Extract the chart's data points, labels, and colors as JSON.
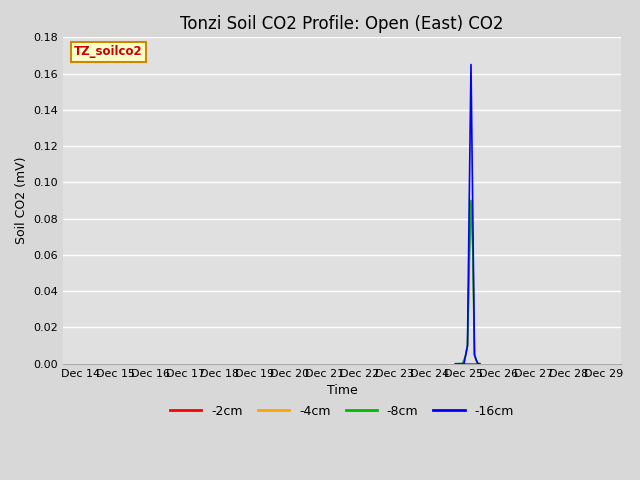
{
  "title": "Tonzi Soil CO2 Profile: Open (East) CO2",
  "xlabel": "Time",
  "ylabel": "Soil CO2 (mV)",
  "ylim": [
    0.0,
    0.18
  ],
  "yticks": [
    0.0,
    0.02,
    0.04,
    0.06,
    0.08,
    0.1,
    0.12,
    0.14,
    0.16,
    0.18
  ],
  "fig_bg_color": "#d8d8d8",
  "plot_bg_color": "#e0e0e0",
  "legend_label": "TZ_soilco2",
  "series": [
    {
      "label": "-2cm",
      "color": "#ff0000",
      "x_days": [
        10.85,
        10.9,
        10.95,
        11.0,
        11.05,
        11.1,
        11.15,
        11.2,
        11.25,
        11.3,
        11.35,
        11.4,
        11.45
      ],
      "y_values": [
        0.0,
        0.0,
        0.0,
        0.0,
        0.0,
        0.0,
        0.0,
        0.0,
        0.0,
        0.0,
        0.0,
        0.0,
        0.0
      ]
    },
    {
      "label": "-4cm",
      "color": "#ffa500",
      "x_days": [
        10.85,
        10.9,
        10.95,
        11.0,
        11.05,
        11.1,
        11.15,
        11.2,
        11.25,
        11.3,
        11.35,
        11.4,
        11.45
      ],
      "y_values": [
        0.0,
        0.0,
        0.0,
        0.002,
        0.005,
        0.01,
        0.055,
        0.09,
        0.065,
        0.005,
        0.002,
        0.0,
        0.0
      ]
    },
    {
      "label": "-8cm",
      "color": "#00bb00",
      "x_days": [
        10.85,
        10.9,
        10.95,
        11.0,
        11.05,
        11.1,
        11.15,
        11.2,
        11.25,
        11.3,
        11.35,
        11.4,
        11.45
      ],
      "y_values": [
        0.0,
        0.0,
        0.0,
        0.002,
        0.005,
        0.01,
        0.055,
        0.09,
        0.065,
        0.005,
        0.002,
        0.0,
        0.0
      ]
    },
    {
      "label": "-16cm",
      "color": "#0000ff",
      "x_days": [
        10.75,
        10.8,
        10.85,
        10.9,
        10.95,
        11.0,
        11.05,
        11.1,
        11.15,
        11.2,
        11.25,
        11.3,
        11.35,
        11.4,
        11.45
      ],
      "y_values": [
        0.0,
        0.0,
        0.0,
        0.0,
        0.0,
        0.0,
        0.005,
        0.01,
        0.09,
        0.165,
        0.085,
        0.005,
        0.002,
        0.0,
        0.0
      ]
    }
  ],
  "xaxis_labels": [
    "Dec 14",
    "Dec 15",
    "Dec 16",
    "Dec 17",
    "Dec 18",
    "Dec 19",
    "Dec 20",
    "Dec 21",
    "Dec 22",
    "Dec 23",
    "Dec 24",
    "Dec 25",
    "Dec 26",
    "Dec 27",
    "Dec 28",
    "Dec 29"
  ],
  "xaxis_days": [
    0,
    1,
    2,
    3,
    4,
    5,
    6,
    7,
    8,
    9,
    10,
    11,
    12,
    13,
    14,
    15
  ],
  "title_fontsize": 12,
  "axis_fontsize": 9,
  "tick_fontsize": 8
}
